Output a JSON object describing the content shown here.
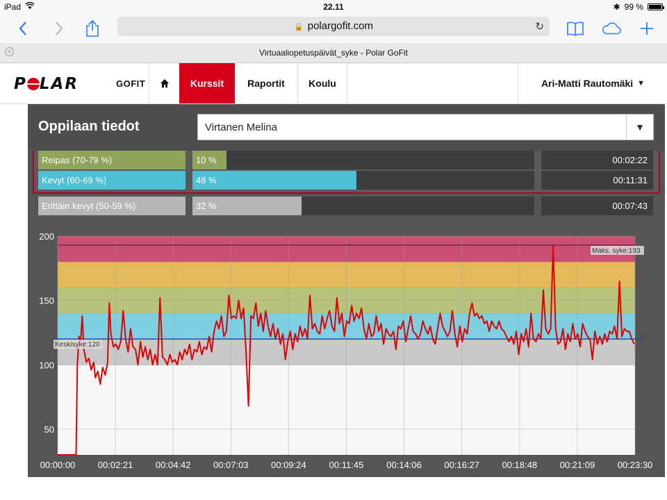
{
  "status_bar": {
    "device": "iPad",
    "time": "22.11",
    "battery": "99 %"
  },
  "browser": {
    "url": "polargofit.com",
    "tab_title": "Virtuaaliopetuspäivät_syke - Polar GoFit"
  },
  "nav": {
    "brand": "POLAR",
    "subbrand": "GOFIT",
    "items": [
      {
        "label": "Kurssit",
        "active": true
      },
      {
        "label": "Raportit",
        "active": false
      },
      {
        "label": "Koulu",
        "active": false
      }
    ],
    "user": "Ari-Matti Rautomäki"
  },
  "page": {
    "title": "Oppilaan tiedot",
    "student_select": "Virtanen Melina"
  },
  "zones": [
    {
      "label": "Reipas (70-79 %)",
      "percent_label": "10 %",
      "percent": 10,
      "time": "00:02:22",
      "color": "#8fa35a"
    },
    {
      "label": "Kevyt (60-69 %)",
      "percent_label": "48 %",
      "percent": 48,
      "time": "00:11:31",
      "color": "#4ec0d6"
    },
    {
      "label": "Erittäin kevyt (50-59 %)",
      "percent_label": "32 %",
      "percent": 32,
      "time": "00:07:43",
      "color": "#b6b6b6"
    }
  ],
  "chart_data": {
    "type": "line",
    "ylim": [
      30,
      200
    ],
    "xlim_seconds": [
      0,
      1410
    ],
    "y_ticks": [
      50,
      100,
      150,
      200
    ],
    "x_ticks": [
      "00:00:00",
      "00:02:21",
      "00:04:42",
      "00:07:03",
      "00:09:24",
      "00:11:45",
      "00:14:06",
      "00:16:27",
      "00:18:48",
      "00:21:09",
      "00:23:30"
    ],
    "bands": [
      {
        "from": 100,
        "to": 120,
        "color": "#c9c9c9"
      },
      {
        "from": 120,
        "to": 140,
        "color": "#7ed0e0"
      },
      {
        "from": 140,
        "to": 160,
        "color": "#b7c27a"
      },
      {
        "from": 160,
        "to": 180,
        "color": "#e3b95a"
      },
      {
        "from": 180,
        "to": 200,
        "color": "#c94f73"
      }
    ],
    "avg_label": "Keskisyke:120",
    "avg_value": 120,
    "max_label": "Maks. syke:193",
    "max_value": 193,
    "series": [
      {
        "color": "#e00000",
        "points": [
          [
            0,
            30
          ],
          [
            45,
            30
          ],
          [
            48,
            100
          ],
          [
            52,
            122
          ],
          [
            56,
            118
          ],
          [
            60,
            138
          ],
          [
            64,
            112
          ],
          [
            70,
            102
          ],
          [
            76,
            105
          ],
          [
            82,
            96
          ],
          [
            88,
            102
          ],
          [
            92,
            90
          ],
          [
            98,
            95
          ],
          [
            104,
            85
          ],
          [
            110,
            98
          ],
          [
            116,
            92
          ],
          [
            122,
            102
          ],
          [
            126,
            148
          ],
          [
            130,
            124
          ],
          [
            136,
            114
          ],
          [
            142,
            116
          ],
          [
            148,
            112
          ],
          [
            154,
            118
          ],
          [
            160,
            142
          ],
          [
            166,
            120
          ],
          [
            172,
            110
          ],
          [
            178,
            128
          ],
          [
            184,
            114
          ],
          [
            190,
            112
          ],
          [
            196,
            100
          ],
          [
            202,
            118
          ],
          [
            208,
            106
          ],
          [
            214,
            114
          ],
          [
            220,
            104
          ],
          [
            226,
            112
          ],
          [
            232,
            100
          ],
          [
            238,
            108
          ],
          [
            244,
            100
          ],
          [
            250,
            152
          ],
          [
            256,
            106
          ],
          [
            262,
            104
          ],
          [
            268,
            100
          ],
          [
            274,
            108
          ],
          [
            280,
            102
          ],
          [
            286,
            104
          ],
          [
            292,
            100
          ],
          [
            298,
            110
          ],
          [
            304,
            104
          ],
          [
            310,
            112
          ],
          [
            316,
            108
          ],
          [
            322,
            116
          ],
          [
            328,
            104
          ],
          [
            334,
            112
          ],
          [
            340,
            110
          ],
          [
            346,
            118
          ],
          [
            352,
            108
          ],
          [
            358,
            114
          ],
          [
            364,
            112
          ],
          [
            370,
            122
          ],
          [
            376,
            110
          ],
          [
            382,
            126
          ],
          [
            388,
            134
          ],
          [
            394,
            128
          ],
          [
            400,
            138
          ],
          [
            406,
            122
          ],
          [
            412,
            126
          ],
          [
            418,
            154
          ],
          [
            424,
            136
          ],
          [
            430,
            138
          ],
          [
            436,
            136
          ],
          [
            442,
            150
          ],
          [
            448,
            136
          ],
          [
            454,
            144
          ],
          [
            460,
            110
          ],
          [
            466,
            68
          ],
          [
            472,
            138
          ],
          [
            478,
            136
          ],
          [
            484,
            148
          ],
          [
            490,
            130
          ],
          [
            496,
            140
          ],
          [
            502,
            126
          ],
          [
            508,
            142
          ],
          [
            514,
            130
          ],
          [
            520,
            122
          ],
          [
            526,
            132
          ],
          [
            532,
            120
          ],
          [
            538,
            128
          ],
          [
            544,
            116
          ],
          [
            550,
            124
          ],
          [
            556,
            104
          ],
          [
            562,
            118
          ],
          [
            568,
            126
          ],
          [
            574,
            112
          ],
          [
            580,
            124
          ],
          [
            586,
            118
          ],
          [
            592,
            130
          ],
          [
            598,
            122
          ],
          [
            604,
            128
          ],
          [
            610,
            120
          ],
          [
            616,
            154
          ],
          [
            622,
            128
          ],
          [
            628,
            132
          ],
          [
            634,
            126
          ],
          [
            640,
            124
          ],
          [
            646,
            138
          ],
          [
            652,
            128
          ],
          [
            658,
            136
          ],
          [
            664,
            142
          ],
          [
            670,
            130
          ],
          [
            676,
            126
          ],
          [
            682,
            152
          ],
          [
            688,
            132
          ],
          [
            694,
            140
          ],
          [
            700,
            122
          ],
          [
            706,
            134
          ],
          [
            712,
            132
          ],
          [
            718,
            146
          ],
          [
            724,
            134
          ],
          [
            730,
            140
          ],
          [
            736,
            136
          ],
          [
            742,
            144
          ],
          [
            748,
            128
          ],
          [
            754,
            120
          ],
          [
            760,
            132
          ],
          [
            766,
            122
          ],
          [
            772,
            124
          ],
          [
            778,
            138
          ],
          [
            784,
            126
          ],
          [
            790,
            132
          ],
          [
            796,
            116
          ],
          [
            802,
            128
          ],
          [
            808,
            124
          ],
          [
            814,
            122
          ],
          [
            820,
            126
          ],
          [
            826,
            112
          ],
          [
            832,
            130
          ],
          [
            838,
            128
          ],
          [
            844,
            134
          ],
          [
            850,
            118
          ],
          [
            856,
            128
          ],
          [
            862,
            138
          ],
          [
            868,
            126
          ],
          [
            874,
            124
          ],
          [
            880,
            120
          ],
          [
            886,
            124
          ],
          [
            892,
            134
          ],
          [
            898,
            128
          ],
          [
            904,
            124
          ],
          [
            910,
            130
          ],
          [
            916,
            120
          ],
          [
            922,
            116
          ],
          [
            928,
            128
          ],
          [
            934,
            140
          ],
          [
            940,
            130
          ],
          [
            946,
            126
          ],
          [
            952,
            122
          ],
          [
            958,
            126
          ],
          [
            964,
            142
          ],
          [
            970,
            124
          ],
          [
            976,
            114
          ],
          [
            982,
            130
          ],
          [
            988,
            118
          ],
          [
            994,
            128
          ],
          [
            1000,
            124
          ],
          [
            1006,
            140
          ],
          [
            1012,
            148
          ],
          [
            1018,
            138
          ],
          [
            1024,
            140
          ],
          [
            1030,
            136
          ],
          [
            1036,
            138
          ],
          [
            1042,
            132
          ],
          [
            1048,
            134
          ],
          [
            1054,
            126
          ],
          [
            1060,
            134
          ],
          [
            1066,
            130
          ],
          [
            1072,
            128
          ],
          [
            1078,
            134
          ],
          [
            1084,
            128
          ],
          [
            1090,
            126
          ],
          [
            1096,
            122
          ],
          [
            1102,
            118
          ],
          [
            1108,
            122
          ],
          [
            1114,
            116
          ],
          [
            1120,
            126
          ],
          [
            1126,
            108
          ],
          [
            1132,
            124
          ],
          [
            1138,
            118
          ],
          [
            1144,
            128
          ],
          [
            1150,
            114
          ],
          [
            1156,
            140
          ],
          [
            1162,
            120
          ],
          [
            1168,
            118
          ],
          [
            1174,
            124
          ],
          [
            1180,
            120
          ],
          [
            1186,
            158
          ],
          [
            1192,
            128
          ],
          [
            1198,
            124
          ],
          [
            1204,
            128
          ],
          [
            1210,
            193
          ],
          [
            1216,
            128
          ],
          [
            1222,
            116
          ],
          [
            1228,
            118
          ],
          [
            1234,
            128
          ],
          [
            1240,
            112
          ],
          [
            1246,
            124
          ],
          [
            1252,
            118
          ],
          [
            1258,
            132
          ],
          [
            1264,
            120
          ],
          [
            1270,
            124
          ],
          [
            1276,
            114
          ],
          [
            1282,
            132
          ],
          [
            1288,
            126
          ],
          [
            1294,
            122
          ],
          [
            1300,
            120
          ],
          [
            1306,
            104
          ],
          [
            1312,
            126
          ],
          [
            1318,
            116
          ],
          [
            1324,
            122
          ],
          [
            1330,
            116
          ],
          [
            1336,
            124
          ],
          [
            1342,
            118
          ],
          [
            1348,
            126
          ],
          [
            1354,
            124
          ],
          [
            1360,
            130
          ],
          [
            1366,
            120
          ],
          [
            1372,
            165
          ],
          [
            1378,
            122
          ],
          [
            1384,
            128
          ],
          [
            1390,
            126
          ],
          [
            1396,
            126
          ],
          [
            1402,
            120
          ],
          [
            1408,
            116
          ]
        ]
      }
    ]
  }
}
